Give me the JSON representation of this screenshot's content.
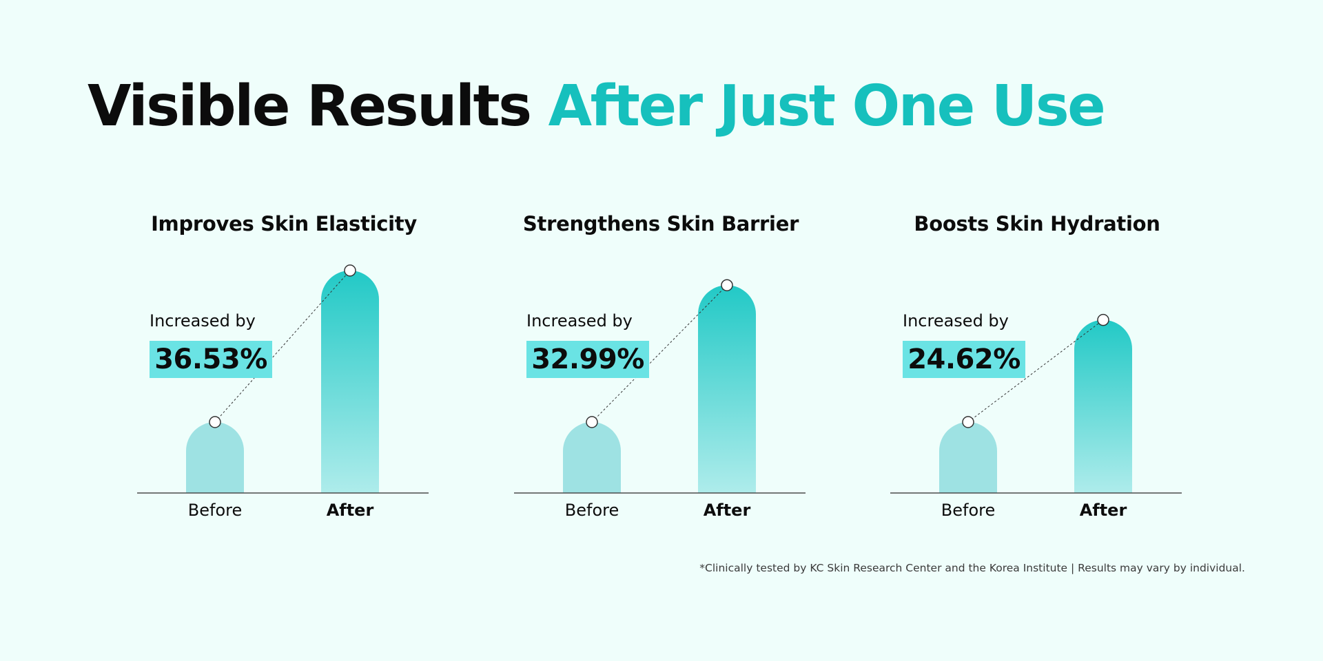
{
  "headline": {
    "part1": "Visible Results ",
    "part2": "After Just One Use"
  },
  "colors": {
    "background": "#effefb",
    "accent": "#16c0bd",
    "before_bar": "#9ee2e3",
    "after_bar_top": "#22c9c6",
    "after_bar_bottom": "#aeeceb",
    "highlight_box": "#6ae3e4"
  },
  "chart_data": [
    {
      "type": "bar",
      "title": "Improves Skin Elasticity",
      "categories": [
        "Before",
        "After"
      ],
      "annotation_label": "Increased by",
      "annotation_value": "36.53%",
      "values": [
        100,
        136.53
      ]
    },
    {
      "type": "bar",
      "title": "Strengthens Skin Barrier",
      "categories": [
        "Before",
        "After"
      ],
      "annotation_label": "Increased by",
      "annotation_value": "32.99%",
      "values": [
        100,
        132.99
      ]
    },
    {
      "type": "bar",
      "title": "Boosts Skin Hydration",
      "categories": [
        "Before",
        "After"
      ],
      "annotation_label": "Increased by",
      "annotation_value": "24.62%",
      "values": [
        100,
        124.62
      ]
    }
  ],
  "footnote": "*Clinically tested by KC Skin Research Center and the Korea Institute | Results may vary by individual."
}
